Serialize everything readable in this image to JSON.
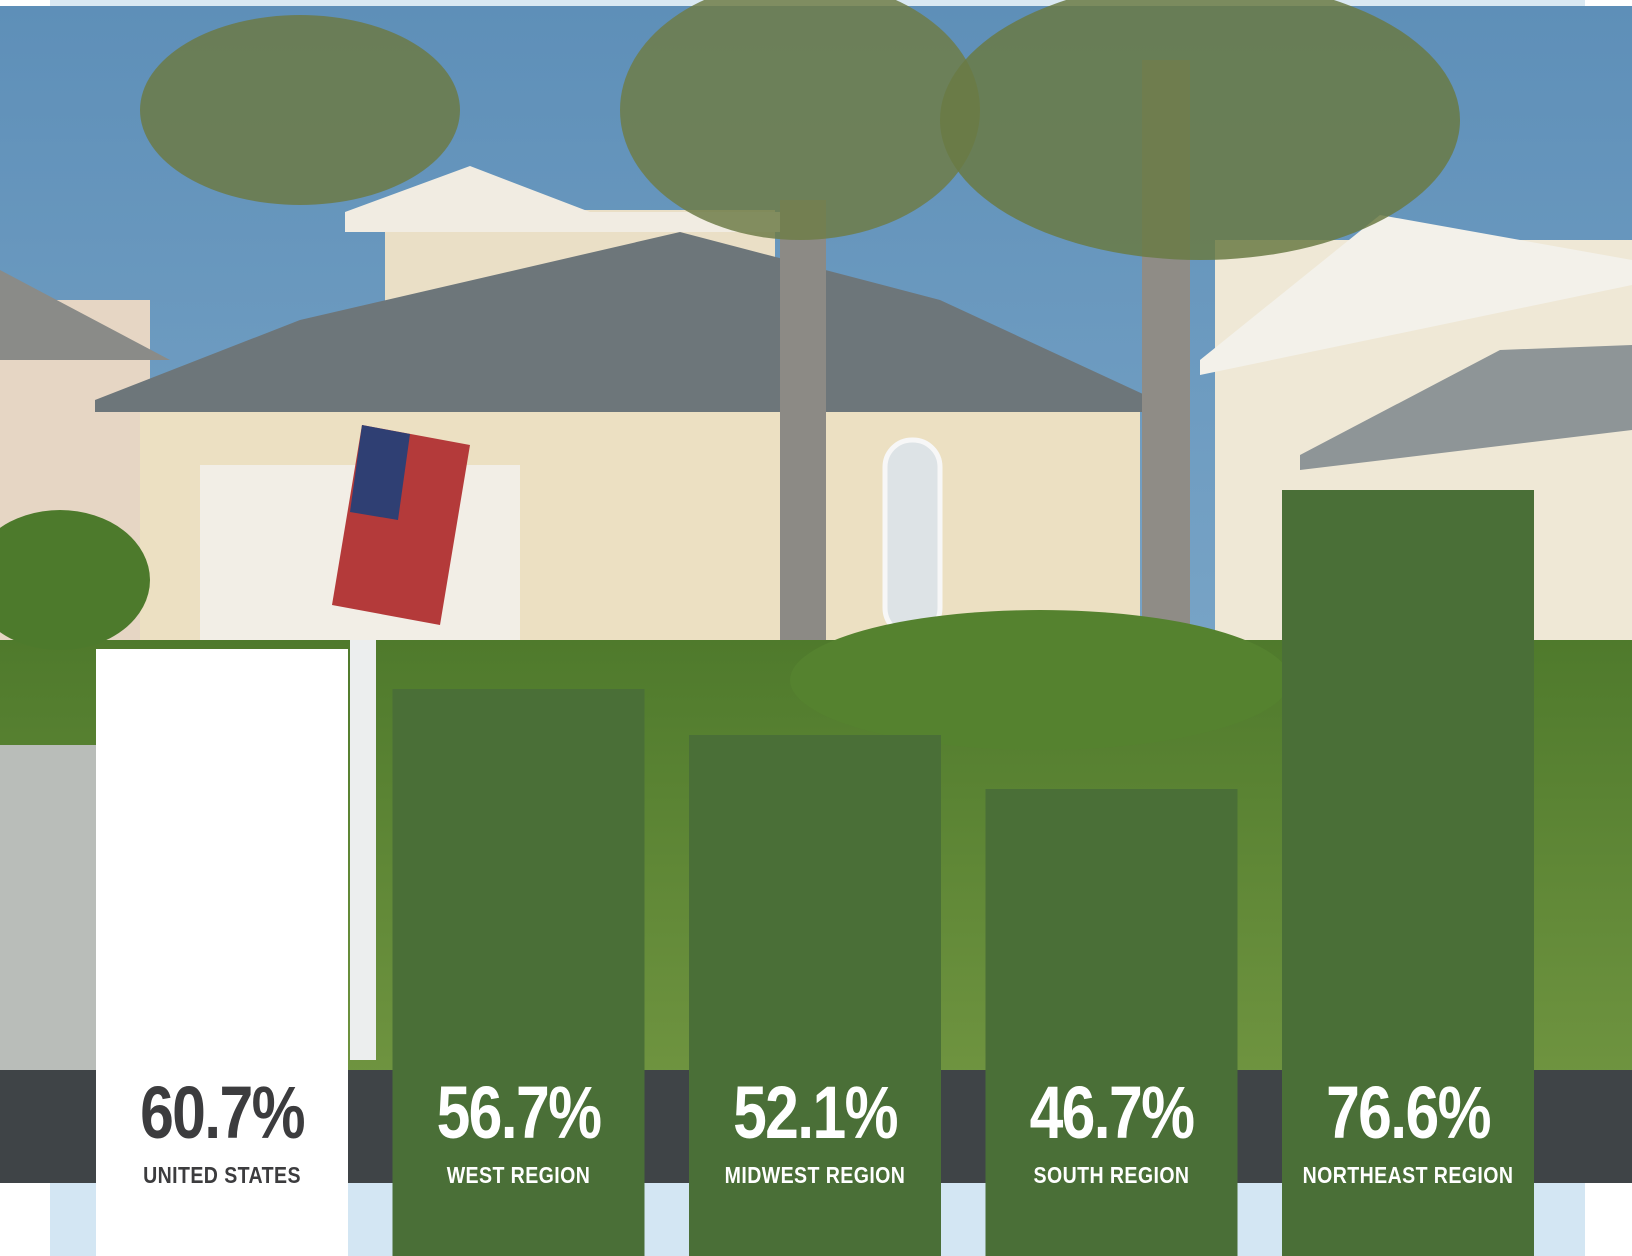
{
  "chart_data": {
    "type": "bar",
    "categories": [
      "UNITED STATES",
      "WEST REGION",
      "MIDWEST REGION",
      "SOUTH REGION",
      "NORTHEAST REGION"
    ],
    "values": [
      60.7,
      56.7,
      52.1,
      46.7,
      76.6
    ],
    "value_labels": [
      "60.7%",
      "56.7%",
      "52.1%",
      "46.7%",
      "76.6%"
    ],
    "colors": [
      "#ffffff",
      "#4a6f37",
      "#4a6f37",
      "#4a6f37",
      "#4a6f37"
    ]
  }
}
